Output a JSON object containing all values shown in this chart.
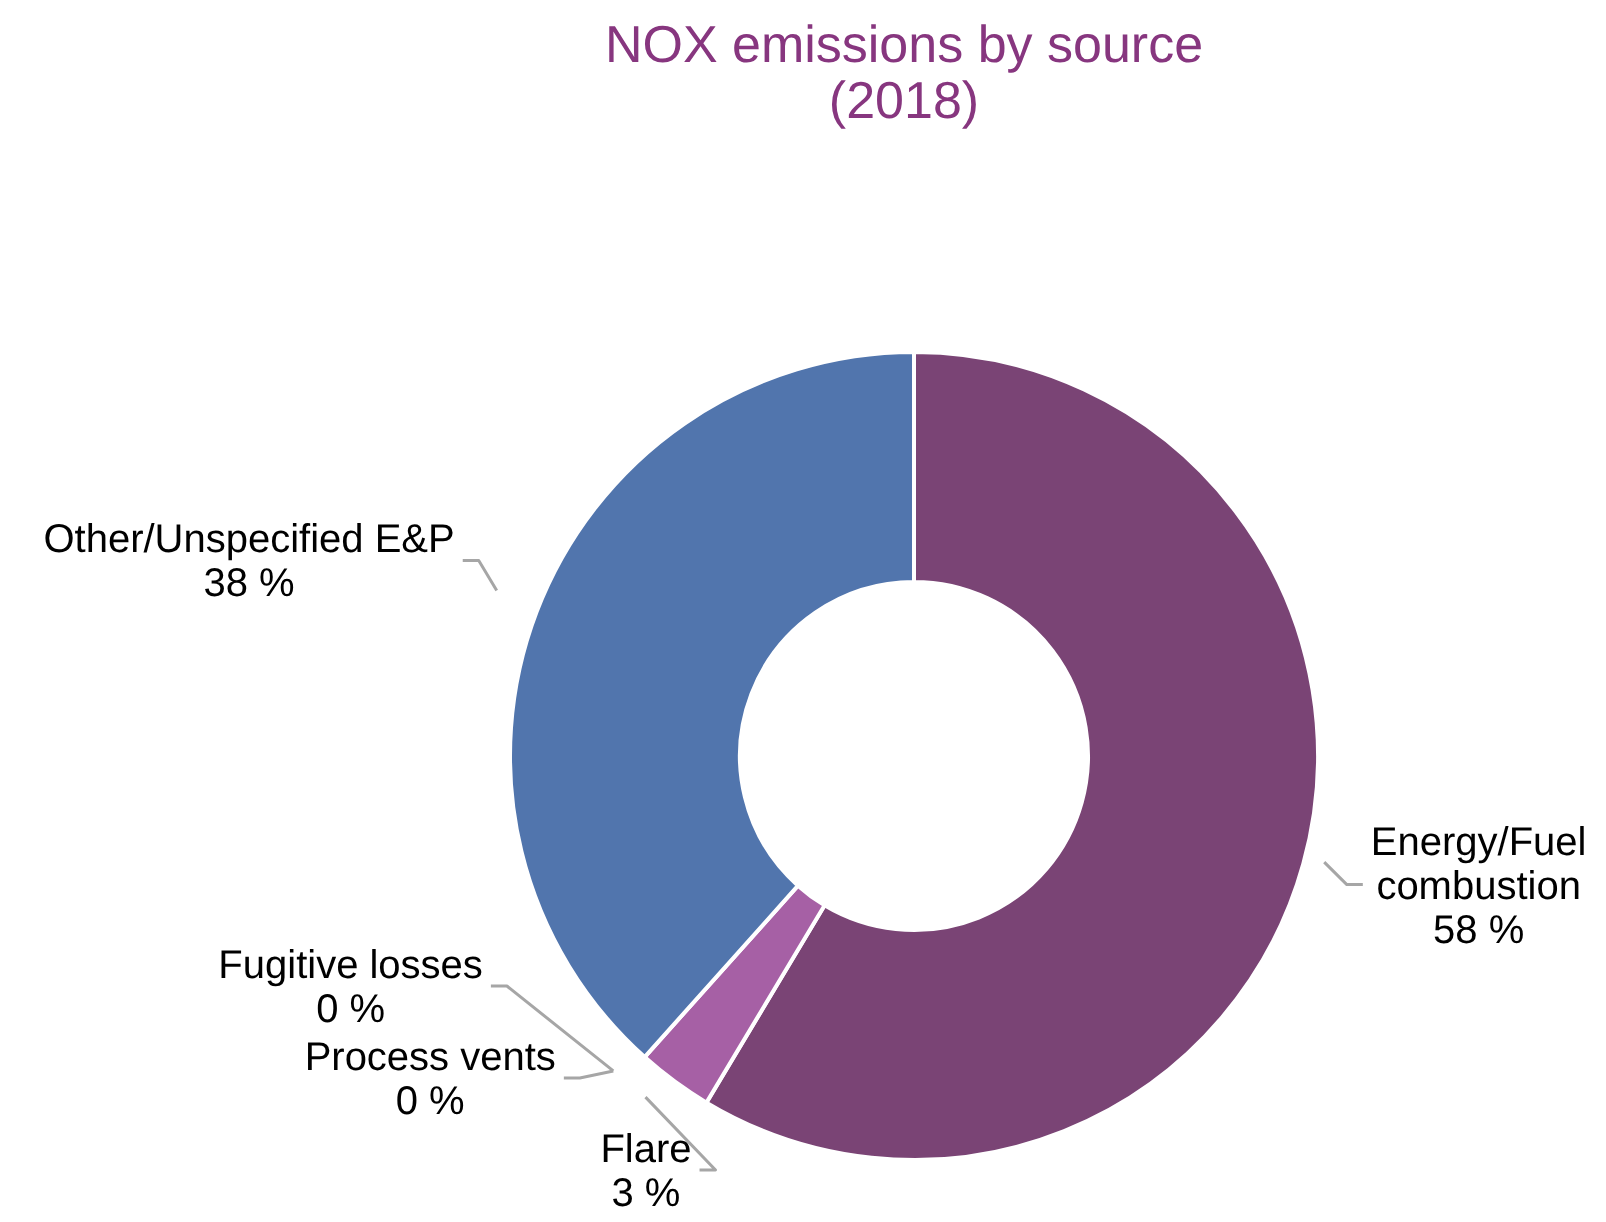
{
  "chart_data": {
    "type": "donut",
    "title": "NOX emissions by source (2018)",
    "categories": [
      "Energy/Fuel combustion",
      "Flare",
      "Process vents",
      "Fugitive losses",
      "Other/Unspecified E&P"
    ],
    "values": [
      58,
      3,
      0,
      0,
      38
    ],
    "colors": [
      "#7a4475",
      "#a660a5",
      null,
      null,
      "#5175ad"
    ],
    "value_labels": [
      "58 %",
      "3 %",
      "0 %",
      "0 %",
      "38 %"
    ]
  }
}
